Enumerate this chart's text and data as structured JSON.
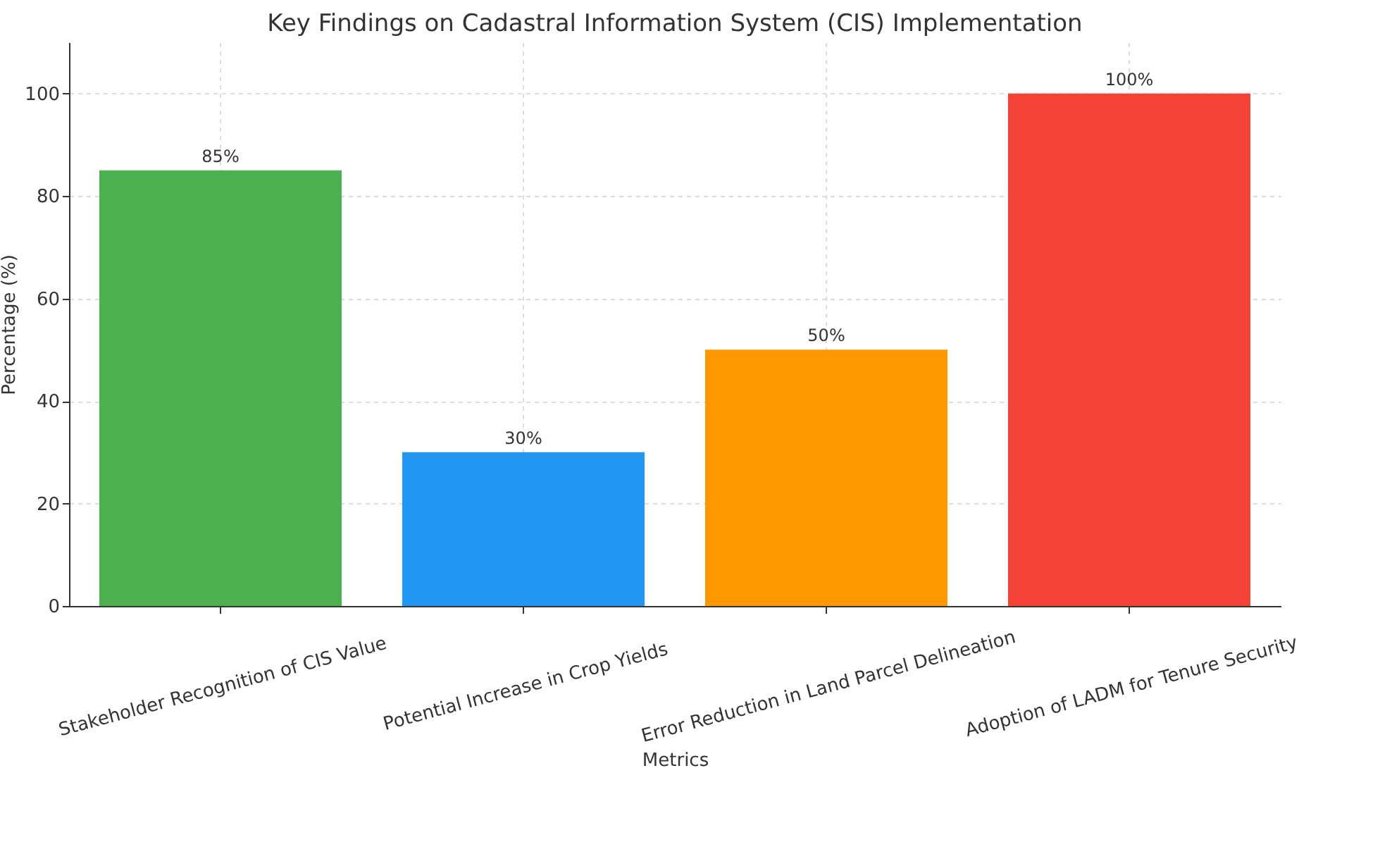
{
  "chart_data": {
    "type": "bar",
    "title": "Key Findings on Cadastral Information System (CIS) Implementation",
    "xlabel": "Metrics",
    "ylabel": "Percentage (%)",
    "categories": [
      "Stakeholder Recognition of CIS Value",
      "Potential Increase in Crop Yields",
      "Error Reduction in Land Parcel Delineation",
      "Adoption of LADM for Tenure Security"
    ],
    "values": [
      85,
      30,
      50,
      100
    ],
    "value_labels": [
      "85%",
      "30%",
      "50%",
      "100%"
    ],
    "colors": [
      "#4caf50",
      "#2196f3",
      "#ff9800",
      "#f44336"
    ],
    "ylim": [
      0,
      110
    ],
    "yticks": [
      0,
      20,
      40,
      60,
      80,
      100
    ],
    "grid": true,
    "legend": false
  }
}
